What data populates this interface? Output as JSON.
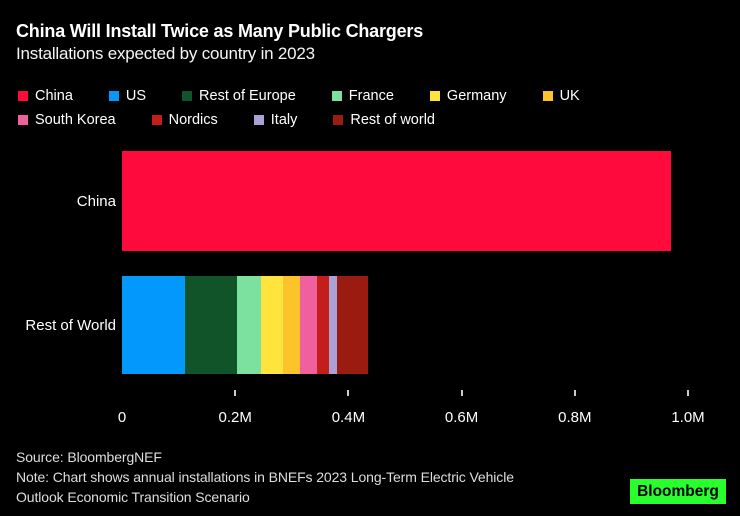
{
  "header": {
    "title": "China Will Install Twice as Many Public Chargers",
    "subtitle": "Installations expected by country in 2023"
  },
  "chart_data": {
    "type": "bar",
    "orientation": "horizontal",
    "stacked": true,
    "title": "China Will Install Twice as Many Public Chargers",
    "subtitle": "Installations expected by country in 2023",
    "unit": "millions of public chargers",
    "xlim": [
      0,
      1.0
    ],
    "x_tick_values": [
      0,
      0.2,
      0.4,
      0.6,
      0.8,
      1.0
    ],
    "x_tick_labels": [
      "0",
      "0.2M",
      "0.4M",
      "0.6M",
      "0.8M",
      "1.0M"
    ],
    "categories": [
      "China",
      "Rest of World"
    ],
    "legend_position": "top",
    "legend_rows": [
      [
        "China",
        "US",
        "Rest of Europe",
        "France",
        "Germany",
        "UK"
      ],
      [
        "South Korea",
        "Nordics",
        "Italy",
        "Rest of world"
      ]
    ],
    "palette": {
      "China": "#ff0a3c",
      "US": "#0398fc",
      "Rest of Europe": "#12542a",
      "France": "#7ce09e",
      "Germany": "#ffe43d",
      "UK": "#fcc32a",
      "South Korea": "#f0609f",
      "Nordics": "#c41e19",
      "Italy": "#aba1d6",
      "Rest of world": "#9a1c10"
    },
    "bars": [
      {
        "category": "China",
        "segments": [
          {
            "name": "China",
            "value": 0.97
          }
        ]
      },
      {
        "category": "Rest of World",
        "segments": [
          {
            "name": "US",
            "value": 0.112
          },
          {
            "name": "Rest of Europe",
            "value": 0.092
          },
          {
            "name": "France",
            "value": 0.041
          },
          {
            "name": "Germany",
            "value": 0.039
          },
          {
            "name": "UK",
            "value": 0.03
          },
          {
            "name": "South Korea",
            "value": 0.03
          },
          {
            "name": "Nordics",
            "value": 0.022
          },
          {
            "name": "Italy",
            "value": 0.014
          },
          {
            "name": "Rest of world",
            "value": 0.055
          }
        ]
      }
    ]
  },
  "footer": {
    "source": "Source: BloombergNEF",
    "note_lines": [
      "Note: Chart shows annual installations in BNEFs 2023 Long-Term Electric Vehicle",
      "Outlook Economic Transition Scenario"
    ],
    "logo_text": "Bloomberg"
  },
  "colors": {
    "background": "#000000",
    "title_text": "#ffffff",
    "axis_text": "#ffffff",
    "footer_text": "#dedede",
    "tick_mark": "#cccccc",
    "logo_green": "#28ff2d"
  }
}
